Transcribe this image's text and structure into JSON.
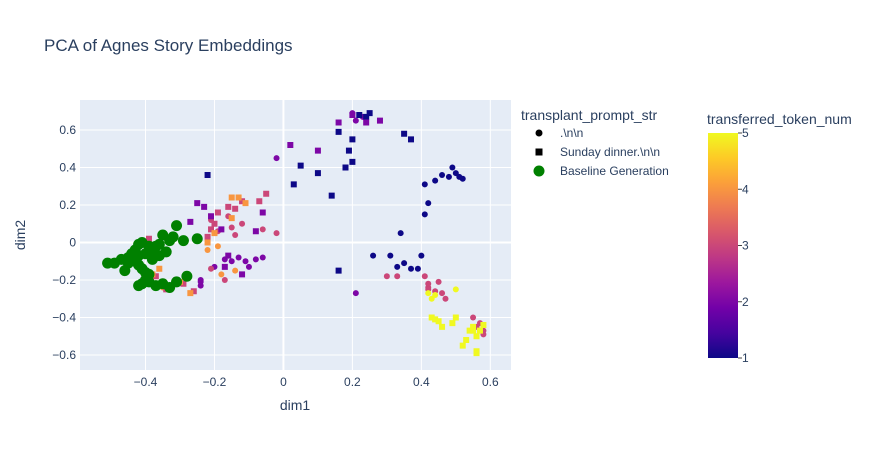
{
  "chart_data": {
    "type": "scatter",
    "title": "PCA of Agnes Story Embeddings",
    "xlabel": "dim1",
    "ylabel": "dim2",
    "xlim": [
      -0.59,
      0.66
    ],
    "ylim": [
      -0.68,
      0.76
    ],
    "xticks": [
      -0.4,
      -0.2,
      0,
      0.2,
      0.4,
      0.6
    ],
    "xtick_labels": [
      "−0.4",
      "−0.2",
      "0",
      "0.2",
      "0.4",
      "0.6"
    ],
    "yticks": [
      -0.6,
      -0.4,
      -0.2,
      0,
      0.2,
      0.4,
      0.6
    ],
    "ytick_labels": [
      "−0.6",
      "−0.4",
      "−0.2",
      "0",
      "0.2",
      "0.4",
      "0.6"
    ],
    "grid": true,
    "plot_background": "#e5ecf6",
    "grid_color": "#ffffff",
    "legend": {
      "title": "transplant_prompt_str",
      "placement": "top-right",
      "entries": [
        {
          "label": ".\\n\\n",
          "marker": "circle"
        },
        {
          "label": "Sunday dinner.\\n\\n",
          "marker": "square"
        },
        {
          "label": "Baseline Generation",
          "marker": "circle",
          "color": "#008000"
        }
      ]
    },
    "colorbar": {
      "title": "transferred_token_num",
      "min": 1,
      "max": 5,
      "ticks": [
        1,
        2,
        3,
        4,
        5
      ],
      "colorscale": [
        "#0d0887",
        "#46039f",
        "#7201a8",
        "#9c179e",
        "#bd3786",
        "#d8576b",
        "#ed7953",
        "#fb9f3a",
        "#fdca26",
        "#f0f921"
      ]
    },
    "series": [
      {
        "name": ".\\n\\n",
        "marker": "circle",
        "points": [
          [
            0.49,
            0.4,
            1
          ],
          [
            0.5,
            0.37,
            1
          ],
          [
            0.51,
            0.35,
            1
          ],
          [
            0.48,
            0.35,
            1
          ],
          [
            0.52,
            0.34,
            1
          ],
          [
            0.44,
            0.33,
            1
          ],
          [
            0.41,
            0.31,
            1
          ],
          [
            0.46,
            0.36,
            1
          ],
          [
            0.42,
            0.21,
            1
          ],
          [
            0.41,
            0.15,
            1
          ],
          [
            0.34,
            0.05,
            1
          ],
          [
            0.26,
            -0.07,
            1
          ],
          [
            0.31,
            -0.07,
            1
          ],
          [
            0.35,
            -0.11,
            1
          ],
          [
            0.37,
            -0.14,
            1
          ],
          [
            0.39,
            -0.14,
            1
          ],
          [
            0.4,
            -0.07,
            1
          ],
          [
            0.33,
            -0.13,
            1
          ],
          [
            0.3,
            -0.18,
            3
          ],
          [
            0.33,
            -0.18,
            3
          ],
          [
            0.41,
            -0.18,
            3
          ],
          [
            0.42,
            -0.22,
            3
          ],
          [
            0.42,
            -0.24,
            3
          ],
          [
            0.44,
            -0.26,
            3
          ],
          [
            0.46,
            -0.27,
            3
          ],
          [
            0.47,
            -0.3,
            3
          ],
          [
            0.55,
            -0.4,
            3
          ],
          [
            0.56,
            -0.45,
            3
          ],
          [
            0.58,
            -0.49,
            3
          ],
          [
            0.57,
            -0.43,
            3
          ],
          [
            0.58,
            -0.47,
            3
          ],
          [
            0.42,
            -0.25,
            3
          ],
          [
            0.45,
            -0.21,
            3
          ],
          [
            0.42,
            -0.27,
            5
          ],
          [
            0.43,
            -0.3,
            5
          ],
          [
            0.44,
            -0.28,
            5
          ],
          [
            0.5,
            -0.25,
            5
          ],
          [
            0.2,
            0.69,
            2
          ],
          [
            0.21,
            0.65,
            2
          ],
          [
            0.23,
            0.67,
            2
          ],
          [
            0.21,
            -0.27,
            2
          ],
          [
            -0.02,
            0.45,
            2
          ],
          [
            -0.2,
            -0.13,
            2
          ],
          [
            -0.17,
            -0.09,
            2
          ],
          [
            -0.15,
            -0.1,
            2
          ],
          [
            -0.1,
            -0.13,
            2
          ],
          [
            -0.13,
            -0.08,
            2
          ],
          [
            -0.08,
            -0.09,
            2
          ],
          [
            -0.11,
            -0.1,
            2
          ],
          [
            -0.24,
            -0.23,
            2
          ],
          [
            -0.24,
            -0.2,
            2
          ],
          [
            -0.06,
            -0.08,
            2
          ],
          [
            -0.24,
            -0.21,
            2
          ],
          [
            -0.02,
            0.05,
            3
          ],
          [
            -0.14,
            0.04,
            3
          ],
          [
            -0.15,
            0.08,
            3
          ],
          [
            -0.12,
            0.1,
            3
          ],
          [
            -0.19,
            0.06,
            3
          ],
          [
            -0.21,
            0.12,
            3
          ],
          [
            -0.16,
            0.14,
            3
          ],
          [
            -0.17,
            -0.2,
            3
          ],
          [
            -0.21,
            -0.14,
            3
          ],
          [
            -0.06,
            0.07,
            3
          ],
          [
            -0.35,
            -0.24,
            4
          ],
          [
            -0.31,
            -0.2,
            4
          ],
          [
            -0.22,
            -0.04,
            4
          ],
          [
            -0.19,
            -0.02,
            4
          ],
          [
            -0.14,
            -0.15,
            4
          ],
          [
            -0.18,
            -0.17,
            4
          ]
        ]
      },
      {
        "name": "Sunday dinner.\\n\\n",
        "marker": "square",
        "points": [
          [
            0.16,
            0.59,
            1
          ],
          [
            0.2,
            0.55,
            1
          ],
          [
            0.24,
            0.67,
            1
          ],
          [
            0.25,
            0.69,
            1
          ],
          [
            0.22,
            0.68,
            1
          ],
          [
            0.35,
            0.58,
            1
          ],
          [
            0.37,
            0.55,
            1
          ],
          [
            0.19,
            0.49,
            1
          ],
          [
            0.2,
            0.43,
            1
          ],
          [
            0.18,
            0.4,
            1
          ],
          [
            0.1,
            0.37,
            1
          ],
          [
            0.05,
            0.41,
            1
          ],
          [
            0.03,
            0.31,
            1
          ],
          [
            0.14,
            0.25,
            1
          ],
          [
            0.16,
            -0.15,
            1
          ],
          [
            -0.22,
            0.36,
            1
          ],
          [
            0.2,
            0.68,
            2
          ],
          [
            0.24,
            0.64,
            2
          ],
          [
            0.28,
            0.65,
            2
          ],
          [
            0.16,
            0.64,
            2
          ],
          [
            0.02,
            0.52,
            2
          ],
          [
            0.1,
            0.49,
            2
          ],
          [
            -0.06,
            0.16,
            2
          ],
          [
            -0.21,
            0.14,
            2
          ],
          [
            -0.18,
            0.07,
            2
          ],
          [
            -0.27,
            0.11,
            2
          ],
          [
            -0.25,
            0.21,
            2
          ],
          [
            -0.23,
            0.19,
            2
          ],
          [
            -0.08,
            0.06,
            2
          ],
          [
            -0.17,
            -0.13,
            2
          ],
          [
            -0.16,
            -0.07,
            2
          ],
          [
            -0.12,
            -0.17,
            2
          ],
          [
            -0.05,
            0.26,
            3
          ],
          [
            -0.07,
            0.22,
            3
          ],
          [
            -0.12,
            0.22,
            3
          ],
          [
            -0.14,
            0.18,
            3
          ],
          [
            -0.16,
            0.19,
            3
          ],
          [
            -0.19,
            0.16,
            3
          ],
          [
            -0.2,
            0.1,
            3
          ],
          [
            -0.21,
            0.07,
            3
          ],
          [
            -0.22,
            0.03,
            3
          ],
          [
            -0.39,
            0.02,
            3
          ],
          [
            -0.36,
            0,
            3
          ],
          [
            -0.31,
            -0.2,
            3
          ],
          [
            -0.29,
            -0.22,
            3
          ],
          [
            -0.34,
            -0.25,
            3
          ],
          [
            -0.26,
            -0.26,
            3
          ],
          [
            -0.37,
            -0.18,
            3
          ],
          [
            -0.15,
            0.24,
            4
          ],
          [
            -0.13,
            0.24,
            4
          ],
          [
            -0.11,
            0.21,
            4
          ],
          [
            -0.15,
            0.13,
            4
          ],
          [
            -0.2,
            0.05,
            4
          ],
          [
            -0.22,
            0.0,
            4
          ],
          [
            -0.37,
            -0.23,
            4
          ],
          [
            -0.4,
            -0.22,
            4
          ],
          [
            -0.38,
            -0.17,
            4
          ],
          [
            -0.36,
            -0.14,
            4
          ],
          [
            -0.27,
            -0.27,
            4
          ],
          [
            -0.3,
            -0.21,
            4
          ],
          [
            0.43,
            -0.4,
            5
          ],
          [
            0.44,
            -0.41,
            5
          ],
          [
            0.45,
            -0.42,
            5
          ],
          [
            0.46,
            -0.45,
            5
          ],
          [
            0.49,
            -0.43,
            5
          ],
          [
            0.5,
            -0.4,
            5
          ],
          [
            0.52,
            -0.55,
            5
          ],
          [
            0.54,
            -0.47,
            5
          ],
          [
            0.55,
            -0.47,
            5
          ],
          [
            0.56,
            -0.58,
            5
          ],
          [
            0.56,
            -0.59,
            5
          ],
          [
            0.57,
            -0.47,
            5
          ],
          [
            0.58,
            -0.44,
            5
          ],
          [
            0.53,
            -0.52,
            5
          ],
          [
            0.55,
            -0.45,
            5
          ],
          [
            0.56,
            -0.5,
            5
          ]
        ]
      },
      {
        "name": "Baseline Generation",
        "marker": "circle",
        "color": "#008000",
        "points": [
          [
            -0.51,
            -0.11
          ],
          [
            -0.49,
            -0.11
          ],
          [
            -0.47,
            -0.09
          ],
          [
            -0.45,
            -0.08
          ],
          [
            -0.44,
            -0.06
          ],
          [
            -0.43,
            -0.04
          ],
          [
            -0.42,
            -0.01
          ],
          [
            -0.41,
            0.0
          ],
          [
            -0.39,
            -0.02
          ],
          [
            -0.38,
            -0.04
          ],
          [
            -0.37,
            -0.02
          ],
          [
            -0.36,
            -0.01
          ],
          [
            -0.35,
            0.04
          ],
          [
            -0.33,
            0.01
          ],
          [
            -0.32,
            0.03
          ],
          [
            -0.31,
            0.09
          ],
          [
            -0.29,
            0.01
          ],
          [
            -0.25,
            0.02
          ],
          [
            -0.44,
            -0.08
          ],
          [
            -0.43,
            -0.1
          ],
          [
            -0.42,
            -0.12
          ],
          [
            -0.41,
            -0.14
          ],
          [
            -0.4,
            -0.16
          ],
          [
            -0.39,
            -0.17
          ],
          [
            -0.4,
            -0.2
          ],
          [
            -0.41,
            -0.22
          ],
          [
            -0.42,
            -0.23
          ],
          [
            -0.39,
            -0.21
          ],
          [
            -0.37,
            -0.23
          ],
          [
            -0.35,
            -0.22
          ],
          [
            -0.33,
            -0.24
          ],
          [
            -0.31,
            -0.21
          ],
          [
            -0.28,
            -0.18
          ],
          [
            -0.45,
            -0.11
          ],
          [
            -0.46,
            -0.15
          ],
          [
            -0.42,
            -0.07
          ],
          [
            -0.4,
            -0.06
          ],
          [
            -0.38,
            -0.09
          ],
          [
            -0.36,
            -0.07
          ],
          [
            -0.34,
            -0.05
          ]
        ]
      }
    ]
  }
}
